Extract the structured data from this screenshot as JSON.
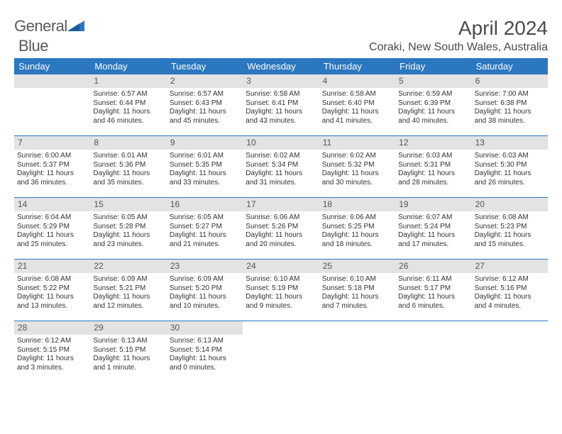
{
  "logo": {
    "text1": "General",
    "text2": "Blue"
  },
  "title": "April 2024",
  "location": "Coraki, New South Wales, Australia",
  "colors": {
    "headerBar": "#2b77c0",
    "dayNumBg": "#e3e3e3",
    "text": "#333333"
  },
  "daysOfWeek": [
    "Sunday",
    "Monday",
    "Tuesday",
    "Wednesday",
    "Thursday",
    "Friday",
    "Saturday"
  ],
  "weeks": [
    [
      {
        "blank": true
      },
      {
        "num": "1",
        "sunrise": "Sunrise: 6:57 AM",
        "sunset": "Sunset: 6:44 PM",
        "day1": "Daylight: 11 hours",
        "day2": "and 46 minutes."
      },
      {
        "num": "2",
        "sunrise": "Sunrise: 6:57 AM",
        "sunset": "Sunset: 6:43 PM",
        "day1": "Daylight: 11 hours",
        "day2": "and 45 minutes."
      },
      {
        "num": "3",
        "sunrise": "Sunrise: 6:58 AM",
        "sunset": "Sunset: 6:41 PM",
        "day1": "Daylight: 11 hours",
        "day2": "and 43 minutes."
      },
      {
        "num": "4",
        "sunrise": "Sunrise: 6:58 AM",
        "sunset": "Sunset: 6:40 PM",
        "day1": "Daylight: 11 hours",
        "day2": "and 41 minutes."
      },
      {
        "num": "5",
        "sunrise": "Sunrise: 6:59 AM",
        "sunset": "Sunset: 6:39 PM",
        "day1": "Daylight: 11 hours",
        "day2": "and 40 minutes."
      },
      {
        "num": "6",
        "sunrise": "Sunrise: 7:00 AM",
        "sunset": "Sunset: 6:38 PM",
        "day1": "Daylight: 11 hours",
        "day2": "and 38 minutes."
      }
    ],
    [
      {
        "num": "7",
        "sunrise": "Sunrise: 6:00 AM",
        "sunset": "Sunset: 5:37 PM",
        "day1": "Daylight: 11 hours",
        "day2": "and 36 minutes."
      },
      {
        "num": "8",
        "sunrise": "Sunrise: 6:01 AM",
        "sunset": "Sunset: 5:36 PM",
        "day1": "Daylight: 11 hours",
        "day2": "and 35 minutes."
      },
      {
        "num": "9",
        "sunrise": "Sunrise: 6:01 AM",
        "sunset": "Sunset: 5:35 PM",
        "day1": "Daylight: 11 hours",
        "day2": "and 33 minutes."
      },
      {
        "num": "10",
        "sunrise": "Sunrise: 6:02 AM",
        "sunset": "Sunset: 5:34 PM",
        "day1": "Daylight: 11 hours",
        "day2": "and 31 minutes."
      },
      {
        "num": "11",
        "sunrise": "Sunrise: 6:02 AM",
        "sunset": "Sunset: 5:32 PM",
        "day1": "Daylight: 11 hours",
        "day2": "and 30 minutes."
      },
      {
        "num": "12",
        "sunrise": "Sunrise: 6:03 AM",
        "sunset": "Sunset: 5:31 PM",
        "day1": "Daylight: 11 hours",
        "day2": "and 28 minutes."
      },
      {
        "num": "13",
        "sunrise": "Sunrise: 6:03 AM",
        "sunset": "Sunset: 5:30 PM",
        "day1": "Daylight: 11 hours",
        "day2": "and 26 minutes."
      }
    ],
    [
      {
        "num": "14",
        "sunrise": "Sunrise: 6:04 AM",
        "sunset": "Sunset: 5:29 PM",
        "day1": "Daylight: 11 hours",
        "day2": "and 25 minutes."
      },
      {
        "num": "15",
        "sunrise": "Sunrise: 6:05 AM",
        "sunset": "Sunset: 5:28 PM",
        "day1": "Daylight: 11 hours",
        "day2": "and 23 minutes."
      },
      {
        "num": "16",
        "sunrise": "Sunrise: 6:05 AM",
        "sunset": "Sunset: 5:27 PM",
        "day1": "Daylight: 11 hours",
        "day2": "and 21 minutes."
      },
      {
        "num": "17",
        "sunrise": "Sunrise: 6:06 AM",
        "sunset": "Sunset: 5:26 PM",
        "day1": "Daylight: 11 hours",
        "day2": "and 20 minutes."
      },
      {
        "num": "18",
        "sunrise": "Sunrise: 6:06 AM",
        "sunset": "Sunset: 5:25 PM",
        "day1": "Daylight: 11 hours",
        "day2": "and 18 minutes."
      },
      {
        "num": "19",
        "sunrise": "Sunrise: 6:07 AM",
        "sunset": "Sunset: 5:24 PM",
        "day1": "Daylight: 11 hours",
        "day2": "and 17 minutes."
      },
      {
        "num": "20",
        "sunrise": "Sunrise: 6:08 AM",
        "sunset": "Sunset: 5:23 PM",
        "day1": "Daylight: 11 hours",
        "day2": "and 15 minutes."
      }
    ],
    [
      {
        "num": "21",
        "sunrise": "Sunrise: 6:08 AM",
        "sunset": "Sunset: 5:22 PM",
        "day1": "Daylight: 11 hours",
        "day2": "and 13 minutes."
      },
      {
        "num": "22",
        "sunrise": "Sunrise: 6:09 AM",
        "sunset": "Sunset: 5:21 PM",
        "day1": "Daylight: 11 hours",
        "day2": "and 12 minutes."
      },
      {
        "num": "23",
        "sunrise": "Sunrise: 6:09 AM",
        "sunset": "Sunset: 5:20 PM",
        "day1": "Daylight: 11 hours",
        "day2": "and 10 minutes."
      },
      {
        "num": "24",
        "sunrise": "Sunrise: 6:10 AM",
        "sunset": "Sunset: 5:19 PM",
        "day1": "Daylight: 11 hours",
        "day2": "and 9 minutes."
      },
      {
        "num": "25",
        "sunrise": "Sunrise: 6:10 AM",
        "sunset": "Sunset: 5:18 PM",
        "day1": "Daylight: 11 hours",
        "day2": "and 7 minutes."
      },
      {
        "num": "26",
        "sunrise": "Sunrise: 6:11 AM",
        "sunset": "Sunset: 5:17 PM",
        "day1": "Daylight: 11 hours",
        "day2": "and 6 minutes."
      },
      {
        "num": "27",
        "sunrise": "Sunrise: 6:12 AM",
        "sunset": "Sunset: 5:16 PM",
        "day1": "Daylight: 11 hours",
        "day2": "and 4 minutes."
      }
    ],
    [
      {
        "num": "28",
        "sunrise": "Sunrise: 6:12 AM",
        "sunset": "Sunset: 5:15 PM",
        "day1": "Daylight: 11 hours",
        "day2": "and 3 minutes."
      },
      {
        "num": "29",
        "sunrise": "Sunrise: 6:13 AM",
        "sunset": "Sunset: 5:15 PM",
        "day1": "Daylight: 11 hours",
        "day2": "and 1 minute."
      },
      {
        "num": "30",
        "sunrise": "Sunrise: 6:13 AM",
        "sunset": "Sunset: 5:14 PM",
        "day1": "Daylight: 11 hours",
        "day2": "and 0 minutes."
      },
      {
        "blank": true
      },
      {
        "blank": true
      },
      {
        "blank": true
      },
      {
        "blank": true
      }
    ]
  ]
}
